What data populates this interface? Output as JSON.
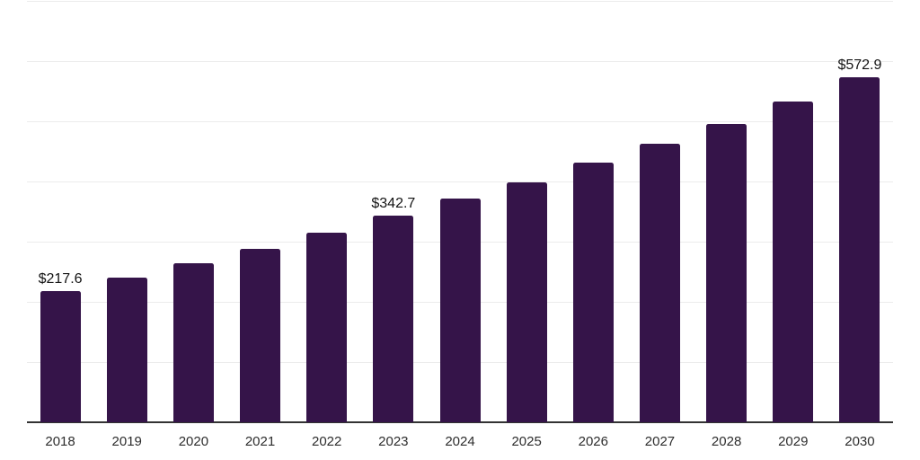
{
  "chart_data": {
    "type": "bar",
    "title": "",
    "xlabel": "",
    "ylabel": "",
    "categories": [
      "2018",
      "2019",
      "2020",
      "2021",
      "2022",
      "2023",
      "2024",
      "2025",
      "2026",
      "2027",
      "2028",
      "2029",
      "2030"
    ],
    "values": [
      217.6,
      240.9,
      263.8,
      288.1,
      314.4,
      342.7,
      371.0,
      398.9,
      431.0,
      462.1,
      495.8,
      533.6,
      572.9
    ],
    "labeled_categories": [
      "2018",
      "2023",
      "2030"
    ],
    "value_labels": [
      "$217.6",
      "$342.7",
      "$572.9"
    ],
    "ylim": [
      0,
      700
    ],
    "grid_step": 100,
    "grid": "horizontal-only",
    "legend": "none",
    "y_tick_labels_visible": false,
    "colors": {
      "bar": "#351449",
      "gridline": "#ececec",
      "axis": "#333333",
      "value_label_text": "#131313",
      "tick_label_text": "#2d2d2d",
      "background": "#ffffff"
    }
  }
}
